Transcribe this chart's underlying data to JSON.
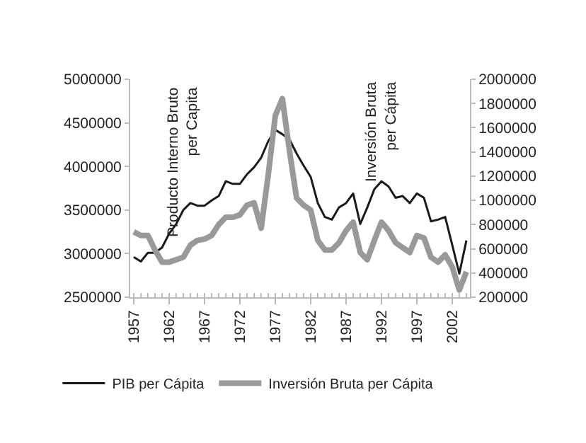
{
  "chart_data": {
    "type": "line",
    "x": [
      1957,
      1958,
      1959,
      1960,
      1961,
      1962,
      1963,
      1964,
      1965,
      1966,
      1967,
      1968,
      1969,
      1970,
      1971,
      1972,
      1973,
      1974,
      1975,
      1976,
      1977,
      1978,
      1979,
      1980,
      1981,
      1982,
      1983,
      1984,
      1985,
      1986,
      1987,
      1988,
      1989,
      1990,
      1991,
      1992,
      1993,
      1994,
      1995,
      1996,
      1997,
      1998,
      1999,
      2000,
      2001,
      2002,
      2003,
      2004
    ],
    "series": [
      {
        "name": "PIB per Cápita",
        "color": "#1a1a1a",
        "values": [
          2960000,
          2910000,
          3010000,
          3010000,
          3070000,
          3230000,
          3340000,
          3500000,
          3580000,
          3550000,
          3550000,
          3610000,
          3660000,
          3830000,
          3800000,
          3800000,
          3910000,
          3990000,
          4100000,
          4290000,
          4420000,
          4370000,
          4310000,
          4150000,
          4010000,
          3880000,
          3580000,
          3420000,
          3390000,
          3530000,
          3580000,
          3690000,
          3340000,
          3530000,
          3740000,
          3830000,
          3770000,
          3640000,
          3660000,
          3580000,
          3690000,
          3640000,
          3370000,
          3390000,
          3420000,
          3100000,
          2770000,
          3150000
        ]
      },
      {
        "name": "Inversión Bruta per Cápita",
        "color": "#999999",
        "axis": "y2",
        "values": [
          740000,
          710000,
          710000,
          590000,
          490000,
          490000,
          510000,
          530000,
          630000,
          670000,
          680000,
          710000,
          800000,
          860000,
          860000,
          880000,
          960000,
          980000,
          770000,
          1210000,
          1700000,
          1840000,
          1410000,
          1020000,
          960000,
          920000,
          670000,
          590000,
          590000,
          650000,
          750000,
          820000,
          570000,
          510000,
          670000,
          820000,
          750000,
          650000,
          610000,
          570000,
          710000,
          690000,
          530000,
          490000,
          550000,
          450000,
          260000,
          410000
        ]
      }
    ],
    "xlim": [
      1956.5,
      2004.5
    ],
    "xticks": [
      1957,
      1962,
      1967,
      1972,
      1977,
      1982,
      1987,
      1992,
      1997,
      2002
    ],
    "ylim": [
      2500000,
      5000000
    ],
    "yticks": [
      2500000,
      3000000,
      3500000,
      4000000,
      4500000,
      5000000
    ],
    "y2lim": [
      200000,
      2000000
    ],
    "y2ticks": [
      200000,
      400000,
      600000,
      800000,
      1000000,
      1200000,
      1400000,
      1600000,
      1800000,
      2000000
    ],
    "annotations": [
      "Producto Interno Bruto\nper Capita",
      "Inversión Bruta\nper Cápita"
    ],
    "legend": "bottom",
    "marker": "none",
    "line_style": "solid"
  }
}
